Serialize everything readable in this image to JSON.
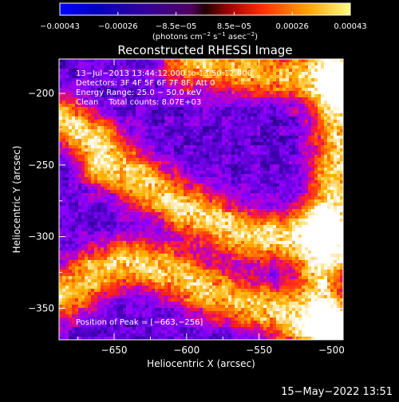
{
  "chart_data": {
    "type": "heatmap",
    "title": "Reconstructed RHESSI Image",
    "xlabel": "Heliocentric X (arcsec)",
    "ylabel": "Heliocentric Y (arcsec)",
    "xlim": [
      -688,
      -492
    ],
    "ylim": [
      -372,
      -176
    ],
    "x_ticks": [
      -650,
      -600,
      -550,
      -500
    ],
    "y_ticks": [
      -350,
      -300,
      -250,
      -200
    ],
    "x_tick_labels": [
      "−650",
      "−600",
      "−550",
      "−500"
    ],
    "y_tick_labels": [
      "−350",
      "−300",
      "−250",
      "−200"
    ],
    "colorbar": {
      "range": [
        -0.00043,
        0.00043
      ],
      "tick_labels": [
        "−0.00043",
        "−0.00026",
        "−8.5e−05",
        "8.5e−05",
        "0.00026",
        "0.00043"
      ],
      "units_prefix": "(photons cm",
      "units_exp1": "−2",
      "units_mid": " s",
      "units_exp2": "−1",
      "units_mid2": " asec",
      "units_exp3": "−2",
      "units_suffix": ")"
    },
    "annotations": [
      "13−Jul−2013 13:44:12.000 to 13:50:12.000",
      "Detectors: 3F 4F 5F 6F 7F 8F, Att 0",
      "Energy Range: 25.0 − 50.0 keV",
      "Clean    Total counts: 8.07E+03"
    ],
    "peak_label": "Position of Peak = [−663,−256]",
    "peak_position": [
      -663,
      -256
    ],
    "ridges": [
      {
        "name": "upper-left",
        "points": [
          [
            -688,
            -218
          ],
          [
            -665,
            -232
          ],
          [
            -652,
            -246
          ],
          [
            -630,
            -262
          ],
          [
            -605,
            -278
          ],
          [
            -580,
            -290
          ],
          [
            -555,
            -300
          ],
          [
            -532,
            -300
          ],
          [
            -510,
            -298
          ],
          [
            -492,
            -300
          ]
        ],
        "peak": 0.00043
      },
      {
        "name": "lower",
        "points": [
          [
            -688,
            -342
          ],
          [
            -660,
            -324
          ],
          [
            -640,
            -318
          ],
          [
            -618,
            -322
          ],
          [
            -600,
            -330
          ],
          [
            -585,
            -338
          ],
          [
            -565,
            -345
          ],
          [
            -542,
            -352
          ],
          [
            -518,
            -360
          ],
          [
            -492,
            -368
          ]
        ],
        "peak": 0.0004
      },
      {
        "name": "top-right",
        "points": [
          [
            -600,
            -178
          ],
          [
            -570,
            -183
          ],
          [
            -540,
            -186
          ],
          [
            -510,
            -190
          ],
          [
            -492,
            -192
          ]
        ],
        "peak": 0.00033
      },
      {
        "name": "right-edge",
        "points": [
          [
            -496,
            -176
          ],
          [
            -496,
            -230
          ],
          [
            -500,
            -280
          ],
          [
            -508,
            -330
          ],
          [
            -500,
            -372
          ]
        ],
        "peak": 0.00038
      }
    ],
    "background_level": -0.0002,
    "colormap_stops": [
      "#000000",
      "#1c0070",
      "#4a00c0",
      "#8a00ff",
      "#c000c0",
      "#ff2020",
      "#ff6a00",
      "#ffb000",
      "#ffe080",
      "#ffffff"
    ]
  },
  "timestamp": "15−May−2022 13:51"
}
